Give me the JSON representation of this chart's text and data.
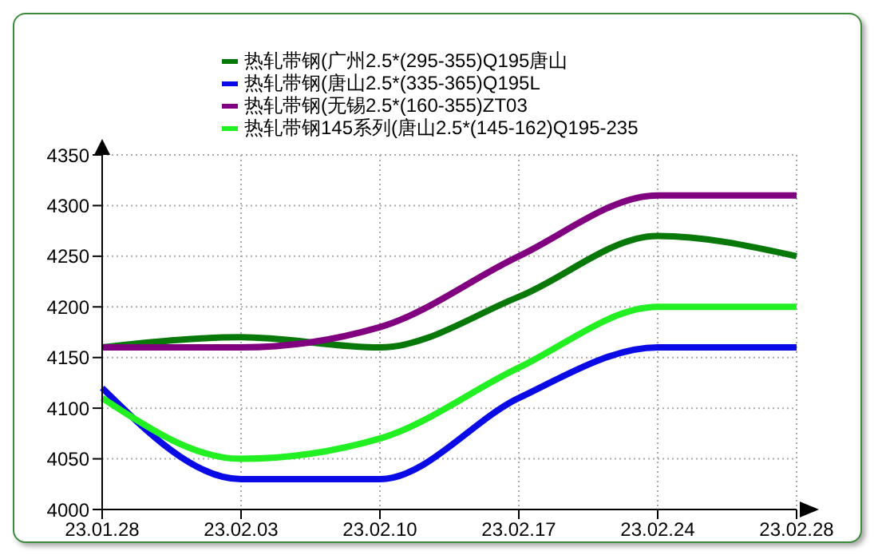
{
  "chart_data": {
    "type": "line",
    "categories": [
      "23.01.28",
      "23.02.03",
      "23.02.10",
      "23.02.17",
      "23.02.24",
      "23.02.28"
    ],
    "series": [
      {
        "name": "热轧带钢(广州2.5*(295-355)Q195唐山",
        "color": "#087808",
        "values": [
          4160,
          4170,
          4160,
          4210,
          4270,
          4250
        ]
      },
      {
        "name": "热轧带钢(唐山2.5*(335-365)Q195L",
        "color": "#0a0ae6",
        "values": [
          4120,
          4030,
          4030,
          4110,
          4160,
          4160
        ]
      },
      {
        "name": "热轧带钢(无锡2.5*(160-355)ZT03",
        "color": "#800080",
        "values": [
          4160,
          4160,
          4180,
          4250,
          4310,
          4310
        ]
      },
      {
        "name": "热轧带钢145系列(唐山2.5*(145-162)Q195-235",
        "color": "#22f022",
        "values": [
          4110,
          4050,
          4070,
          4140,
          4200,
          4200
        ]
      }
    ],
    "ylim": [
      4000,
      4350
    ],
    "yticks": [
      4000,
      4050,
      4100,
      4150,
      4200,
      4250,
      4300,
      4350
    ],
    "grid": true,
    "legend": "top",
    "marker": "none",
    "line_style": "solid"
  }
}
